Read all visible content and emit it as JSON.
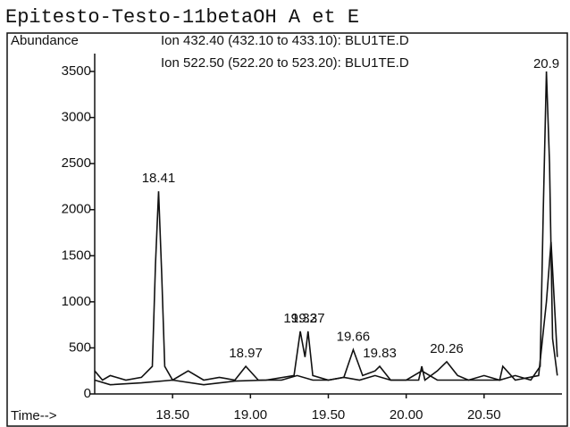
{
  "chart_data": {
    "type": "line",
    "title": "Epitesto-Testo-11betaOH A et E",
    "y_label": "Abundance",
    "x_label": "Time-->",
    "xlim": [
      18.0,
      21.0
    ],
    "ylim": [
      0,
      3500
    ],
    "xticks": [
      {
        "value": 18.5,
        "label": "18.50"
      },
      {
        "value": 19.0,
        "label": "19.00"
      },
      {
        "value": 19.5,
        "label": "19.50"
      },
      {
        "value": 20.0,
        "label": "20.00"
      },
      {
        "value": 20.5,
        "label": "20.50"
      }
    ],
    "yticks": [
      0,
      500,
      1000,
      1500,
      2000,
      2500,
      3000,
      3500
    ],
    "series": [
      {
        "name": "Ion 432.40 (432.10 to 433.10): BLU1TE.D",
        "color": "#111111",
        "x": [
          18.0,
          18.05,
          18.1,
          18.2,
          18.3,
          18.37,
          18.39,
          18.41,
          18.43,
          18.45,
          18.5,
          18.6,
          18.7,
          18.8,
          18.9,
          18.97,
          19.05,
          19.2,
          19.3,
          19.4,
          19.5,
          19.6,
          19.7,
          19.8,
          19.9,
          20.0,
          20.1,
          20.2,
          20.3,
          20.4,
          20.5,
          20.6,
          20.7,
          20.8,
          20.86,
          20.88,
          20.9,
          20.92,
          20.94,
          20.97
        ],
        "values": [
          250,
          150,
          200,
          150,
          180,
          300,
          1400,
          2200,
          1300,
          300,
          150,
          250,
          150,
          180,
          150,
          300,
          150,
          150,
          200,
          150,
          150,
          180,
          150,
          200,
          150,
          150,
          250,
          150,
          150,
          150,
          200,
          150,
          200,
          150,
          300,
          2000,
          3500,
          2500,
          600,
          200
        ]
      },
      {
        "name": "Ion 522.50 (522.20 to 523.20): BLU1TE.D",
        "color": "#111111",
        "x": [
          18.0,
          18.1,
          18.3,
          18.5,
          18.7,
          18.9,
          19.1,
          19.28,
          19.32,
          19.35,
          19.37,
          19.4,
          19.5,
          19.6,
          19.66,
          19.72,
          19.8,
          19.83,
          19.9,
          20.08,
          20.1,
          20.12,
          20.2,
          20.26,
          20.33,
          20.4,
          20.6,
          20.62,
          20.7,
          20.85,
          20.9,
          20.93,
          20.97
        ],
        "values": [
          150,
          100,
          120,
          150,
          100,
          140,
          150,
          200,
          680,
          400,
          680,
          200,
          150,
          180,
          480,
          200,
          250,
          300,
          150,
          150,
          300,
          150,
          250,
          350,
          200,
          150,
          150,
          300,
          150,
          200,
          1000,
          1650,
          400
        ]
      }
    ],
    "peak_labels": [
      {
        "label": "18.41",
        "x": 18.41,
        "y": 2200
      },
      {
        "label": "18.97",
        "x": 18.97,
        "y": 300
      },
      {
        "label": "19.32",
        "x": 19.32,
        "y": 680
      },
      {
        "label": "19.37",
        "x": 19.37,
        "y": 680
      },
      {
        "label": "19.66",
        "x": 19.66,
        "y": 480
      },
      {
        "label": "19.83",
        "x": 19.83,
        "y": 300
      },
      {
        "label": "20.26",
        "x": 20.26,
        "y": 350
      },
      {
        "label": "20.9",
        "x": 20.9,
        "y": 3500
      }
    ]
  }
}
